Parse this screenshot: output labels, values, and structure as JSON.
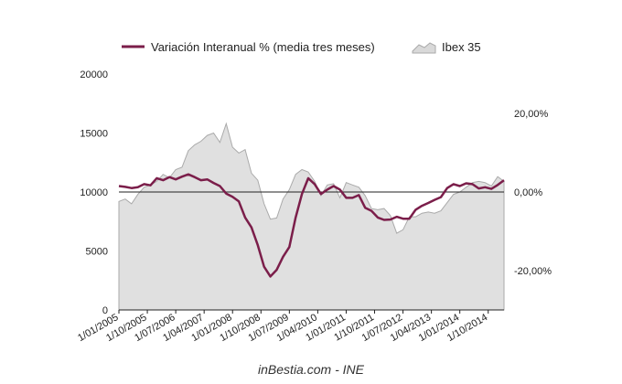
{
  "source_text": "inBestia.com - INE",
  "chart_data": {
    "type": "line",
    "legend": {
      "placement": "top",
      "entries": [
        {
          "label": "Variación Interanual % (media tres meses)",
          "kind": "line",
          "color": "#7b1e4a"
        },
        {
          "label": "Ibex 35",
          "kind": "area",
          "color": "#d9d9d9"
        }
      ]
    },
    "left_axis": {
      "min": 0,
      "max": 20000,
      "ticks": [
        "0",
        "5000",
        "10000",
        "15000",
        "20000"
      ],
      "tick_values": [
        0,
        5000,
        10000,
        15000,
        20000
      ]
    },
    "right_axis": {
      "min": -30,
      "max": 30,
      "ticks": [
        "-20,00%",
        "0,00%",
        "20,00%"
      ],
      "tick_values": [
        -20,
        0,
        20
      ],
      "zero_line": true
    },
    "x_axis": {
      "start": "2005-01",
      "end": "2015-03",
      "tick_labels": [
        "1/01/2005",
        "1/10/2005",
        "1/07/2006",
        "1/04/2007",
        "1/01/2008",
        "1/10/2008",
        "1/07/2009",
        "1/04/2010",
        "1/01/2011",
        "1/10/2011",
        "1/07/2012",
        "1/04/2013",
        "1/01/2014",
        "1/10/2014"
      ],
      "tick_dates": [
        "2005-01",
        "2005-10",
        "2006-07",
        "2007-04",
        "2008-01",
        "2008-10",
        "2009-07",
        "2010-04",
        "2011-01",
        "2011-10",
        "2012-07",
        "2013-04",
        "2014-01",
        "2014-10"
      ]
    },
    "series": [
      {
        "name": "Ibex 35",
        "type": "area",
        "axis": "left",
        "color": "#d9d9d9",
        "stroke": "#aaaaaa",
        "points": [
          [
            "2005-01",
            9200
          ],
          [
            "2005-03",
            9400
          ],
          [
            "2005-05",
            9000
          ],
          [
            "2005-07",
            9800
          ],
          [
            "2005-09",
            10400
          ],
          [
            "2005-11",
            10600
          ],
          [
            "2006-01",
            10900
          ],
          [
            "2006-03",
            11500
          ],
          [
            "2006-05",
            11200
          ],
          [
            "2006-07",
            11900
          ],
          [
            "2006-09",
            12100
          ],
          [
            "2006-11",
            13500
          ],
          [
            "2007-01",
            14000
          ],
          [
            "2007-03",
            14300
          ],
          [
            "2007-05",
            14800
          ],
          [
            "2007-07",
            15000
          ],
          [
            "2007-09",
            14200
          ],
          [
            "2007-11",
            15800
          ],
          [
            "2008-01",
            13800
          ],
          [
            "2008-03",
            13300
          ],
          [
            "2008-05",
            13600
          ],
          [
            "2008-07",
            11600
          ],
          [
            "2008-09",
            11000
          ],
          [
            "2008-11",
            9000
          ],
          [
            "2009-01",
            7700
          ],
          [
            "2009-03",
            7800
          ],
          [
            "2009-05",
            9400
          ],
          [
            "2009-07",
            10200
          ],
          [
            "2009-09",
            11500
          ],
          [
            "2009-11",
            11900
          ],
          [
            "2010-01",
            11700
          ],
          [
            "2010-03",
            10900
          ],
          [
            "2010-05",
            9700
          ],
          [
            "2010-07",
            10600
          ],
          [
            "2010-09",
            10700
          ],
          [
            "2010-11",
            9500
          ],
          [
            "2011-01",
            10800
          ],
          [
            "2011-03",
            10600
          ],
          [
            "2011-05",
            10400
          ],
          [
            "2011-07",
            9700
          ],
          [
            "2011-09",
            8600
          ],
          [
            "2011-11",
            8500
          ],
          [
            "2012-01",
            8600
          ],
          [
            "2012-03",
            8000
          ],
          [
            "2012-05",
            6500
          ],
          [
            "2012-07",
            6800
          ],
          [
            "2012-09",
            7900
          ],
          [
            "2012-11",
            7900
          ],
          [
            "2013-01",
            8200
          ],
          [
            "2013-03",
            8300
          ],
          [
            "2013-05",
            8200
          ],
          [
            "2013-07",
            8400
          ],
          [
            "2013-09",
            9100
          ],
          [
            "2013-11",
            9800
          ],
          [
            "2014-01",
            10000
          ],
          [
            "2014-03",
            10400
          ],
          [
            "2014-05",
            10800
          ],
          [
            "2014-07",
            10900
          ],
          [
            "2014-09",
            10800
          ],
          [
            "2014-11",
            10500
          ],
          [
            "2015-01",
            11300
          ],
          [
            "2015-03",
            10900
          ]
        ]
      },
      {
        "name": "Variación Interanual % (media tres meses)",
        "type": "line",
        "axis": "right",
        "color": "#7b1e4a",
        "points": [
          [
            "2005-01",
            1.5
          ],
          [
            "2005-03",
            1.3
          ],
          [
            "2005-05",
            1.0
          ],
          [
            "2005-07",
            1.2
          ],
          [
            "2005-09",
            2.0
          ],
          [
            "2005-11",
            1.7
          ],
          [
            "2006-01",
            3.5
          ],
          [
            "2006-03",
            3.0
          ],
          [
            "2006-05",
            3.8
          ],
          [
            "2006-07",
            3.2
          ],
          [
            "2006-09",
            3.9
          ],
          [
            "2006-11",
            4.5
          ],
          [
            "2007-01",
            3.8
          ],
          [
            "2007-03",
            3.0
          ],
          [
            "2007-05",
            3.2
          ],
          [
            "2007-07",
            2.3
          ],
          [
            "2007-09",
            1.5
          ],
          [
            "2007-11",
            -0.4
          ],
          [
            "2008-01",
            -1.2
          ],
          [
            "2008-03",
            -2.4
          ],
          [
            "2008-05",
            -6.5
          ],
          [
            "2008-07",
            -9.0
          ],
          [
            "2008-09",
            -13.5
          ],
          [
            "2008-11",
            -19.0
          ],
          [
            "2009-01",
            -21.5
          ],
          [
            "2009-03",
            -19.8
          ],
          [
            "2009-05",
            -16.5
          ],
          [
            "2009-07",
            -14.0
          ],
          [
            "2009-09",
            -6.5
          ],
          [
            "2009-11",
            -0.5
          ],
          [
            "2010-01",
            3.5
          ],
          [
            "2010-03",
            2.0
          ],
          [
            "2010-05",
            -0.5
          ],
          [
            "2010-07",
            0.6
          ],
          [
            "2010-09",
            1.5
          ],
          [
            "2010-11",
            0.6
          ],
          [
            "2011-01",
            -1.5
          ],
          [
            "2011-03",
            -1.5
          ],
          [
            "2011-05",
            -0.8
          ],
          [
            "2011-07",
            -4.0
          ],
          [
            "2011-09",
            -4.8
          ],
          [
            "2011-11",
            -6.5
          ],
          [
            "2012-01",
            -7.1
          ],
          [
            "2012-03",
            -7.0
          ],
          [
            "2012-05",
            -6.3
          ],
          [
            "2012-07",
            -6.8
          ],
          [
            "2012-09",
            -6.8
          ],
          [
            "2012-11",
            -4.5
          ],
          [
            "2013-01",
            -3.5
          ],
          [
            "2013-03",
            -2.8
          ],
          [
            "2013-05",
            -2.0
          ],
          [
            "2013-07",
            -1.3
          ],
          [
            "2013-09",
            1.0
          ],
          [
            "2013-11",
            2.0
          ],
          [
            "2014-01",
            1.5
          ],
          [
            "2014-03",
            2.2
          ],
          [
            "2014-05",
            2.0
          ],
          [
            "2014-07",
            0.9
          ],
          [
            "2014-09",
            1.2
          ],
          [
            "2014-11",
            0.8
          ],
          [
            "2015-01",
            1.8
          ],
          [
            "2015-03",
            3.0
          ]
        ]
      }
    ]
  }
}
